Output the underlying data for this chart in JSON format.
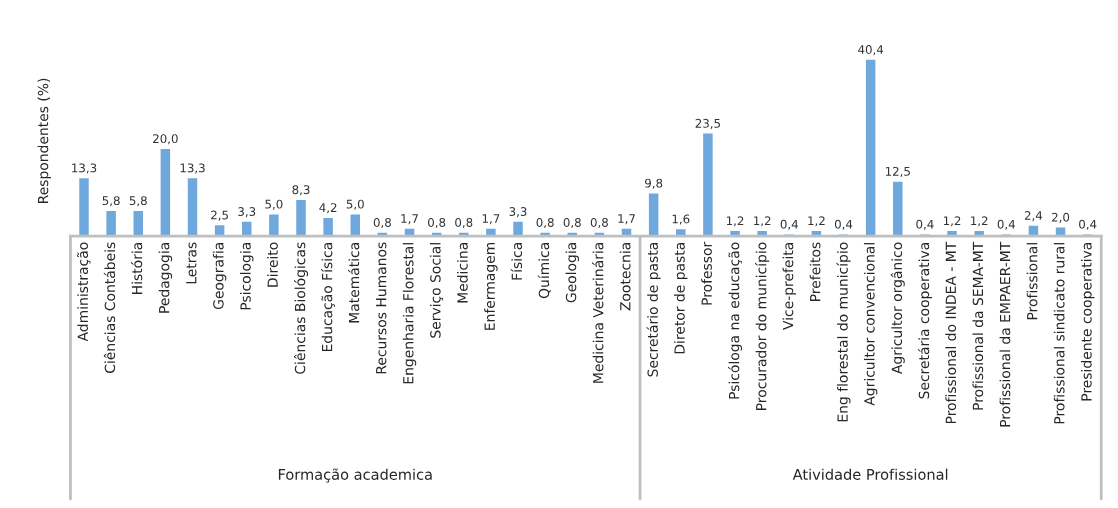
{
  "chart_data": {
    "type": "bar",
    "ylabel": "Respondentes (%)",
    "categories": [
      "Administração",
      "Ciências Contábeis",
      "História",
      "Pedagogia",
      "Letras",
      "Geografia",
      "Psicologia",
      "Direito",
      "Ciências Biológicas",
      "Educação Física",
      "Matemática",
      "Recursos Humanos",
      "Engenharia Florestal",
      "Serviço Social",
      "Medicina",
      "Enfermagem",
      "Física",
      "Química",
      "Geologia",
      "Medicina Veterinária",
      "Zootecnia",
      "Secretário de pasta",
      "Diretor de pasta",
      "Professor",
      "Psicóloga na educação",
      "Procurador do município",
      "Vice-prefeita",
      "Prefeitos",
      "Eng florestal do município",
      "Agricultor convencional",
      "Agricultor orgânico",
      "Secretária cooperativa",
      "Profissional do INDEA - MT",
      "Profissional da SEMA-MT",
      "Profissional da EMPAER-MT",
      "Profissional",
      "Profissional sindicato rural",
      "Presidente cooperativa"
    ],
    "values": [
      13.3,
      5.8,
      5.8,
      20.0,
      13.3,
      2.5,
      3.3,
      5.0,
      8.3,
      4.2,
      5.0,
      0.8,
      1.7,
      0.8,
      0.8,
      1.7,
      3.3,
      0.8,
      0.8,
      0.8,
      1.7,
      9.8,
      1.6,
      23.5,
      1.2,
      1.2,
      0.4,
      1.2,
      0.4,
      40.4,
      12.5,
      0.4,
      1.2,
      1.2,
      0.4,
      2.4,
      2.0,
      0.4
    ],
    "value_labels": [
      "13,3",
      "5,8",
      "5,8",
      "20,0",
      "13,3",
      "2,5",
      "3,3",
      "5,0",
      "8,3",
      "4,2",
      "5,0",
      "0,8",
      "1,7",
      "0,8",
      "0,8",
      "1,7",
      "3,3",
      "0,8",
      "0,8",
      "0,8",
      "1,7",
      "9,8",
      "1,6",
      "23,5",
      "1,2",
      "1,2",
      "0,4",
      "1,2",
      "0,4",
      "40,4",
      "12,5",
      "0,4",
      "1,2",
      "1,2",
      "0,4",
      "2,4",
      "2,0",
      "0,4"
    ],
    "color": "#6fa8dc",
    "annotations": [
      "Formação academica",
      "Atividade Profissional"
    ]
  }
}
